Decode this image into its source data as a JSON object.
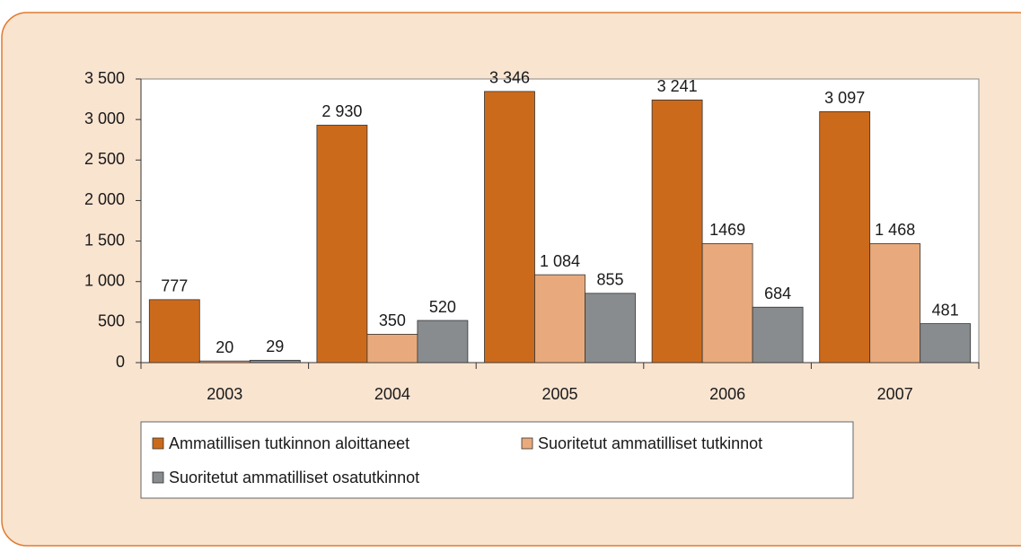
{
  "chart_data": {
    "type": "bar",
    "categories": [
      "2003",
      "2004",
      "2005",
      "2006",
      "2007"
    ],
    "series": [
      {
        "name": "Ammatillisen tutkinnon aloittaneet",
        "color": "#cc6a1c",
        "values": [
          777,
          2930,
          3346,
          3241,
          3097
        ],
        "value_labels": [
          "777",
          "2 930",
          "3 346",
          "3 241",
          "3 097"
        ]
      },
      {
        "name": "Suoritetut ammatilliset tutkinnot",
        "color": "#e8aa7c",
        "values": [
          20,
          350,
          1084,
          1469,
          1468
        ],
        "value_labels": [
          "20",
          "350",
          "1 084",
          "1469",
          "1 468"
        ]
      },
      {
        "name": "Suoritetut ammatilliset osatutkinnot",
        "color": "#898c8e",
        "values": [
          29,
          520,
          855,
          684,
          481
        ],
        "value_labels": [
          "29",
          "520",
          "855",
          "684",
          "481"
        ]
      }
    ],
    "ylim": [
      0,
      3500
    ],
    "yticks": [
      0,
      500,
      {
        "value": 1000,
        "label": "1 000"
      },
      {
        "value": 1500,
        "label": "1 500"
      },
      {
        "value": 2000,
        "label": "2 000"
      },
      {
        "value": 2500,
        "label": "2 500"
      },
      {
        "value": 3000,
        "label": "3 000"
      },
      {
        "value": 3500,
        "label": "3 500"
      }
    ],
    "grid": false
  }
}
